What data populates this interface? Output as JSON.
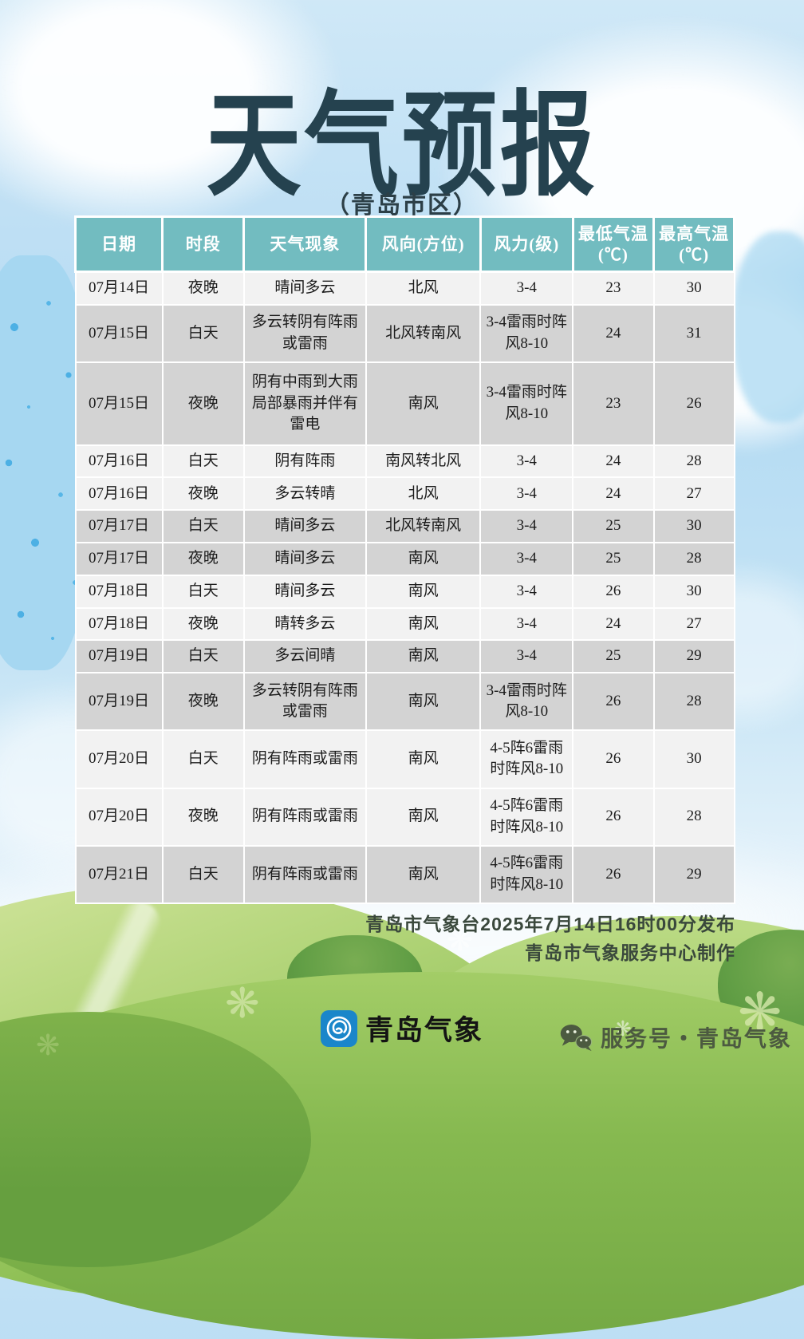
{
  "poster": {
    "title": "天气预报",
    "subtitle": "（青岛市区）"
  },
  "table": {
    "headers": [
      "日期",
      "时段",
      "天气现象",
      "风向(方位)",
      "风力(级)",
      "最低气温(℃)",
      "最高气温(℃)"
    ],
    "rows": [
      [
        "07月14日",
        "夜晚",
        "晴间多云",
        "北风",
        "3-4",
        "23",
        "30"
      ],
      [
        "07月15日",
        "白天",
        "多云转阴有阵雨或雷雨",
        "北风转南风",
        "3-4雷雨时阵风8-10",
        "24",
        "31"
      ],
      [
        "07月15日",
        "夜晚",
        "阴有中雨到大雨局部暴雨并伴有雷电",
        "南风",
        "3-4雷雨时阵风8-10",
        "23",
        "26"
      ],
      [
        "07月16日",
        "白天",
        "阴有阵雨",
        "南风转北风",
        "3-4",
        "24",
        "28"
      ],
      [
        "07月16日",
        "夜晚",
        "多云转晴",
        "北风",
        "3-4",
        "24",
        "27"
      ],
      [
        "07月17日",
        "白天",
        "晴间多云",
        "北风转南风",
        "3-4",
        "25",
        "30"
      ],
      [
        "07月17日",
        "夜晚",
        "晴间多云",
        "南风",
        "3-4",
        "25",
        "28"
      ],
      [
        "07月18日",
        "白天",
        "晴间多云",
        "南风",
        "3-4",
        "26",
        "30"
      ],
      [
        "07月18日",
        "夜晚",
        "晴转多云",
        "南风",
        "3-4",
        "24",
        "27"
      ],
      [
        "07月19日",
        "白天",
        "多云间晴",
        "南风",
        "3-4",
        "25",
        "29"
      ],
      [
        "07月19日",
        "夜晚",
        "多云转阴有阵雨或雷雨",
        "南风",
        "3-4雷雨时阵风8-10",
        "26",
        "28"
      ],
      [
        "07月20日",
        "白天",
        "阴有阵雨或雷雨",
        "南风",
        "4-5阵6雷雨时阵风8-10",
        "26",
        "30"
      ],
      [
        "07月20日",
        "夜晚",
        "阴有阵雨或雷雨",
        "南风",
        "4-5阵6雷雨时阵风8-10",
        "26",
        "28"
      ],
      [
        "07月21日",
        "白天",
        "阴有阵雨或雷雨",
        "南风",
        "4-5阵6雷雨时阵风8-10",
        "26",
        "29"
      ]
    ],
    "row_shades": [
      "light",
      "gray",
      "gray",
      "light",
      "light",
      "gray",
      "gray",
      "light",
      "light",
      "gray",
      "gray",
      "light",
      "light",
      "gray"
    ]
  },
  "footer": {
    "issued_line": "青岛市气象台2025年7月14日16时00分发布",
    "produced_line": "青岛市气象服务中心制作"
  },
  "branding": {
    "logo_text": "青岛气象",
    "service_account": "服务号・青岛气象"
  },
  "decorations": {
    "flower_glyph": "❋"
  },
  "colors": {
    "header_teal": "#72bcc0",
    "row_light": "#f2f2f2",
    "row_gray": "#d3d3d3",
    "title_dark": "#25424f",
    "footer_text": "#3a483c",
    "logo_blue": "#1a86ca",
    "wechat_olive": "#4c5a40"
  }
}
